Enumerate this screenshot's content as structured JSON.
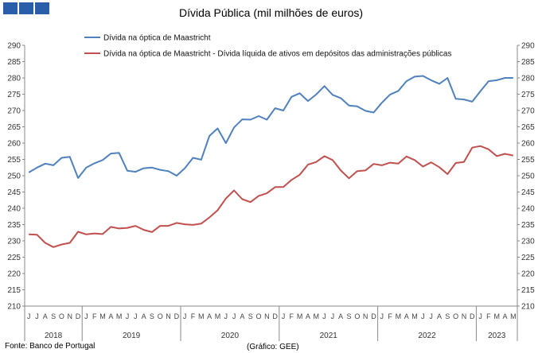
{
  "header": {
    "logo_icon": "bank-of-portugal-logo-icon"
  },
  "chart_data": {
    "type": "line",
    "title": "Dívida Pública (mil milhões de euros)",
    "xlabel": "",
    "ylabel": "",
    "ylim": [
      210,
      290
    ],
    "yticks": [
      210,
      215,
      220,
      225,
      230,
      235,
      240,
      245,
      250,
      255,
      260,
      265,
      270,
      275,
      280,
      285,
      290
    ],
    "grid": false,
    "legend_position": "top-left",
    "years": [
      {
        "label": "2018",
        "months": [
          "J",
          "J",
          "A",
          "S",
          "O",
          "N",
          "D"
        ]
      },
      {
        "label": "2019",
        "months": [
          "J",
          "F",
          "M",
          "A",
          "M",
          "J",
          "J",
          "A",
          "S",
          "O",
          "N",
          "D"
        ]
      },
      {
        "label": "2020",
        "months": [
          "J",
          "F",
          "M",
          "A",
          "M",
          "J",
          "J",
          "A",
          "S",
          "O",
          "N",
          "D"
        ]
      },
      {
        "label": "2021",
        "months": [
          "J",
          "F",
          "M",
          "A",
          "M",
          "J",
          "J",
          "A",
          "S",
          "O",
          "N",
          "D"
        ]
      },
      {
        "label": "2022",
        "months": [
          "J",
          "F",
          "M",
          "A",
          "M",
          "J",
          "J",
          "A",
          "S",
          "O",
          "N",
          "D"
        ]
      },
      {
        "label": "2023",
        "months": [
          "J",
          "F",
          "M",
          "A",
          "M"
        ]
      }
    ],
    "series": [
      {
        "name": "Dívida na óptica de Maastricht",
        "color": "#4f81bd",
        "values": [
          251.0,
          252.5,
          253.7,
          253.2,
          255.5,
          255.8,
          249.3,
          252.5,
          253.8,
          254.8,
          256.8,
          257.0,
          251.5,
          251.2,
          252.3,
          252.5,
          251.8,
          251.4,
          250.0,
          252.3,
          255.5,
          254.9,
          262.2,
          264.5,
          260.0,
          264.8,
          267.3,
          267.2,
          268.3,
          267.2,
          270.7,
          270.0,
          274.2,
          275.3,
          272.9,
          274.9,
          277.5,
          274.8,
          273.8,
          271.5,
          271.3,
          269.9,
          269.4,
          272.4,
          274.9,
          276.0,
          279.0,
          280.4,
          280.6,
          279.3,
          278.2,
          280.0,
          273.6,
          273.4,
          272.7,
          275.9,
          279.0,
          279.3,
          280.0,
          280.0
        ]
      },
      {
        "name": "Dívida na óptica de Maastricht - Dívida líquida de ativos em depósitos das administrações públicas",
        "color": "#c0504d",
        "values": [
          232.0,
          231.9,
          229.4,
          228.1,
          228.9,
          229.4,
          232.8,
          232.0,
          232.3,
          232.1,
          234.3,
          233.8,
          234.0,
          234.6,
          233.4,
          232.7,
          234.6,
          234.6,
          235.5,
          235.1,
          234.9,
          235.3,
          237.2,
          239.4,
          243.0,
          245.5,
          242.8,
          241.9,
          243.8,
          244.6,
          246.5,
          246.5,
          248.7,
          250.3,
          253.4,
          254.2,
          256.0,
          254.8,
          251.6,
          249.2,
          251.4,
          251.6,
          253.6,
          253.2,
          254.0,
          253.7,
          255.9,
          254.8,
          252.8,
          254.1,
          252.6,
          250.5,
          253.9,
          254.2,
          258.6,
          259.1,
          258.1,
          256.0,
          256.7,
          256.2
        ]
      }
    ]
  },
  "footer": {
    "source": "Fonte: Banco de Portugal",
    "graphic": "(Gráfico: GEE)"
  }
}
